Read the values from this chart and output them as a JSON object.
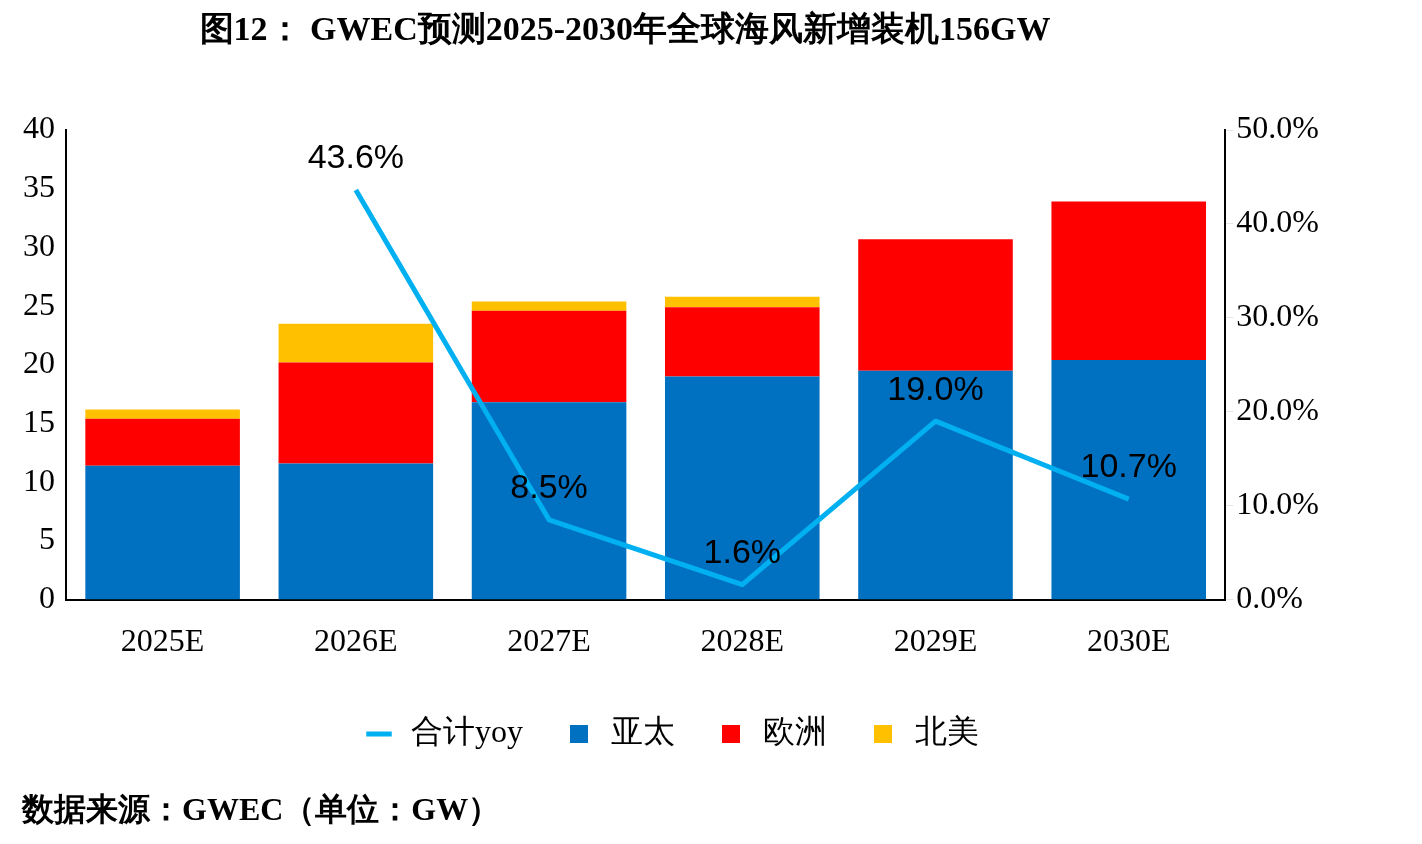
{
  "chart_data": {
    "type": "bar",
    "title": "图12： GWEC预测2025-2030年全球海风新增装机156GW",
    "categories": [
      "2025E",
      "2026E",
      "2027E",
      "2028E",
      "2029E",
      "2030E"
    ],
    "series": [
      {
        "name": "亚太",
        "color": "#0070c0",
        "values": [
          11.4,
          11.6,
          16.8,
          19.0,
          19.5,
          20.4
        ]
      },
      {
        "name": "欧洲",
        "color": "#ff0000",
        "values": [
          4.0,
          8.6,
          7.8,
          5.9,
          11.2,
          13.5
        ]
      },
      {
        "name": "北美",
        "color": "#ffc000",
        "values": [
          0.8,
          3.3,
          0.8,
          0.9,
          0,
          0
        ]
      },
      {
        "name": "合计yoy",
        "type": "line",
        "axis": "y2",
        "color": "#00b0f0",
        "values": [
          null,
          43.6,
          8.5,
          1.6,
          19.0,
          10.7
        ],
        "value_labels": [
          null,
          "43.6%",
          "8.5%",
          "1.6%",
          "19.0%",
          "10.7%"
        ]
      }
    ],
    "stacked": true,
    "marker": "none",
    "ylim": [
      0,
      40
    ],
    "yticks": [
      0,
      5,
      10,
      15,
      20,
      25,
      30,
      35,
      40
    ],
    "y2lim": [
      0,
      50
    ],
    "y2ticks": [
      {
        "value": 0,
        "label": "0.0%"
      },
      {
        "value": 10,
        "label": "10.0%"
      },
      {
        "value": 20,
        "label": "20.0%"
      },
      {
        "value": 30,
        "label": "30.0%"
      },
      {
        "value": 40,
        "label": "40.0%"
      },
      {
        "value": 50,
        "label": "50.0%"
      }
    ],
    "legend": "bottom",
    "annotations": [
      "数据来源：GWEC（单位：GW）"
    ]
  }
}
